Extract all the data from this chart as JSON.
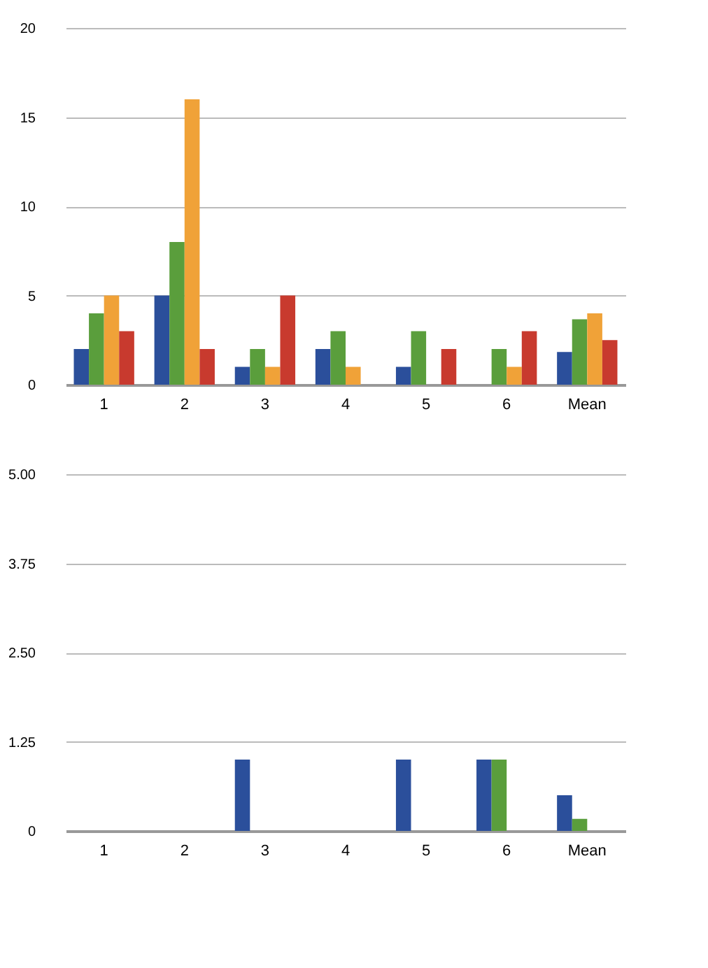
{
  "chart_data": [
    {
      "type": "bar",
      "categories": [
        "1",
        "2",
        "3",
        "4",
        "5",
        "6",
        "Mean"
      ],
      "series": [
        {
          "color": "#2b4f9b",
          "values": [
            2,
            5,
            1,
            2,
            1,
            0,
            1.83
          ]
        },
        {
          "color": "#5a9e3c",
          "values": [
            4,
            8,
            2,
            3,
            3,
            2,
            3.67
          ]
        },
        {
          "color": "#f0a238",
          "values": [
            5,
            16,
            1,
            1,
            0,
            1,
            4
          ]
        },
        {
          "color": "#c83a2e",
          "values": [
            3,
            2,
            5,
            0,
            2,
            3,
            2.5
          ]
        }
      ],
      "ylim": [
        0,
        20
      ],
      "yticks": [
        0,
        5,
        10,
        15,
        20
      ],
      "grid": "y",
      "legend": false
    },
    {
      "type": "bar",
      "categories": [
        "1",
        "2",
        "3",
        "4",
        "5",
        "6",
        "Mean"
      ],
      "series": [
        {
          "color": "#2b4f9b",
          "values": [
            0,
            0,
            1,
            0,
            1,
            1,
            0.5
          ]
        },
        {
          "color": "#5a9e3c",
          "values": [
            0,
            0,
            0,
            0,
            0,
            1,
            0.17
          ]
        },
        {
          "color": "#f0a238",
          "values": [
            0,
            0,
            0,
            0,
            0,
            0,
            0
          ]
        },
        {
          "color": "#c83a2e",
          "values": [
            0,
            0,
            0,
            0,
            0,
            0,
            0
          ]
        }
      ],
      "ylim": [
        0,
        5
      ],
      "yticks": [
        0,
        {
          "value": 1.25,
          "label": "1.25"
        },
        {
          "value": 2.5,
          "label": "2.50"
        },
        {
          "value": 3.75,
          "label": "3.75"
        },
        {
          "value": 5,
          "label": "5.00"
        }
      ],
      "grid": "y",
      "legend": false
    }
  ]
}
